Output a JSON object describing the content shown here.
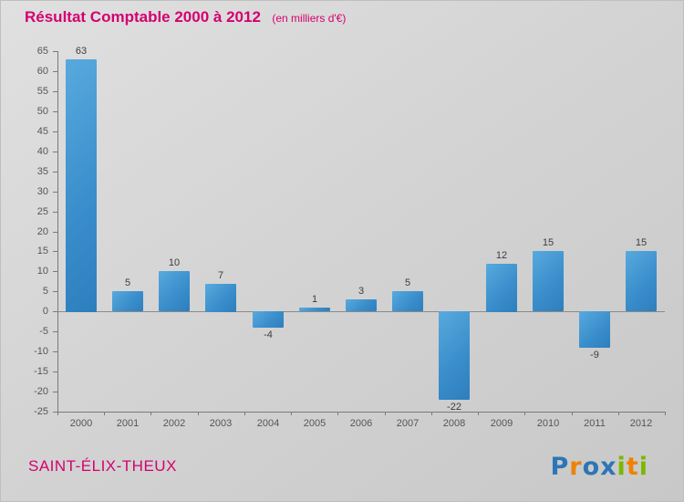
{
  "title": {
    "text": "Résultat Comptable 2000 à 2012",
    "subtitle": "(en milliers d'€)"
  },
  "footer": {
    "org": "SAINT-ÉLIX-THEUX",
    "logo": {
      "word": "Proxiti",
      "letters": [
        {
          "ch": "P",
          "color": "#2e75b6"
        },
        {
          "ch": "r",
          "color": "#ef8200"
        },
        {
          "ch": "o",
          "color": "#2e75b6"
        },
        {
          "ch": "x",
          "color": "#2e75b6"
        },
        {
          "ch": "i",
          "color": "#7ab800"
        },
        {
          "ch": "t",
          "color": "#ef8200"
        },
        {
          "ch": "i",
          "color": "#7ab800"
        }
      ]
    }
  },
  "chart_data": {
    "type": "bar",
    "title": "Résultat Comptable 2000 à 2012",
    "subtitle": "(en milliers d'€)",
    "categories": [
      "2000",
      "2001",
      "2002",
      "2003",
      "2004",
      "2005",
      "2006",
      "2007",
      "2008",
      "2009",
      "2010",
      "2011",
      "2012"
    ],
    "values": [
      63,
      5,
      10,
      7,
      -4,
      1,
      3,
      5,
      -22,
      12,
      15,
      -9,
      15
    ],
    "xlabel": "",
    "ylabel": "",
    "ylim": [
      -25,
      65
    ],
    "ytick_step": 5,
    "grid": false,
    "legend": "none",
    "bar_color_light": "#58aadd",
    "bar_color_dark": "#2d7ebd",
    "axis_color": "#7a7a7a",
    "label_color": "#3c3c3c",
    "accent_color": "#d4006f"
  }
}
